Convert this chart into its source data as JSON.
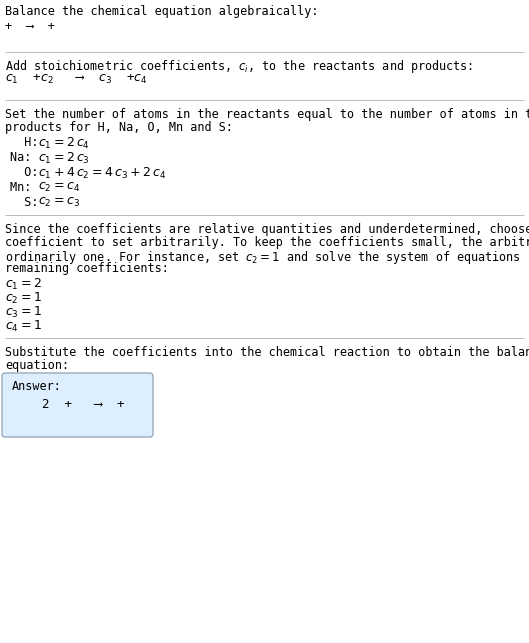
{
  "bg_color": "#ffffff",
  "text_color": "#000000",
  "title": "Balance the chemical equation algebraically:",
  "s1_eq": "+  ⟶  +",
  "s2_header": "Add stoichiometric coefficients, $c_i$, to the reactants and products:",
  "s2_eq": "$c_1$  +$c_2$   ⟶  $c_3$  +$c_4$",
  "s3_header_l1": "Set the number of atoms in the reactants equal to the number of atoms in the",
  "s3_header_l2": "products for H, Na, O, Mn and S:",
  "s3_eqs": [
    [
      "  H: ",
      "$c_1 = 2\\,c_4$"
    ],
    [
      "Na: ",
      "$c_1 = 2\\,c_3$"
    ],
    [
      "  O: ",
      "$c_1 + 4\\,c_2 = 4\\,c_3 + 2\\,c_4$"
    ],
    [
      "Mn: ",
      "$c_2 = c_4$"
    ],
    [
      "  S: ",
      "$c_2 = c_3$"
    ]
  ],
  "s4_header_l1": "Since the coefficients are relative quantities and underdetermined, choose a",
  "s4_header_l2": "coefficient to set arbitrarily. To keep the coefficients small, the arbitrary value is",
  "s4_header_l3": "ordinarily one. For instance, set $c_2 = 1$ and solve the system of equations for the",
  "s4_header_l4": "remaining coefficients:",
  "s4_eqs": [
    "$c_1 = 2$",
    "$c_2 = 1$",
    "$c_3 = 1$",
    "$c_4 = 1$"
  ],
  "s5_header_l1": "Substitute the coefficients into the chemical reaction to obtain the balanced",
  "s5_header_l2": "equation:",
  "answer_label": "Answer:",
  "answer_eq": "    2  +   ⟶  +",
  "answer_box_color": "#ddeeff",
  "answer_box_edge": "#99aabb",
  "sep_color": "#bbbbbb",
  "fs": 8.5,
  "fs_math": 9.0,
  "fs_answer": 8.5
}
